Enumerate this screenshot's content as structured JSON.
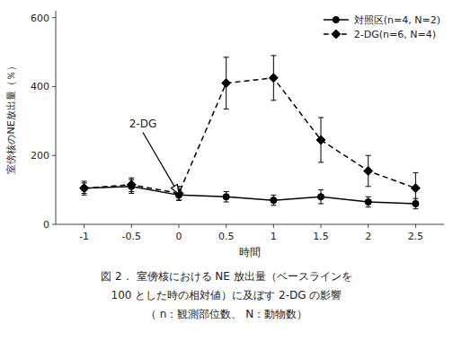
{
  "chart_data": {
    "type": "line",
    "x_label": "時間",
    "y_label": "室傍核のNE放出量（％）",
    "x": [
      -1,
      -0.5,
      0,
      0.5,
      1,
      1.5,
      2,
      2.5
    ],
    "series": [
      {
        "name": "対照区(n=4, N=2)",
        "color": "#000000",
        "marker": "circle",
        "line_style": "solid",
        "values": [
          105,
          110,
          85,
          80,
          70,
          80,
          65,
          60
        ],
        "errors": [
          15,
          20,
          15,
          15,
          15,
          20,
          15,
          15
        ]
      },
      {
        "name": "2-DG(n=6, N=4)",
        "color": "#000000",
        "marker": "diamond",
        "line_style": "dashed",
        "values": [
          105,
          115,
          90,
          410,
          425,
          245,
          155,
          105
        ],
        "errors": [
          20,
          20,
          20,
          75,
          65,
          65,
          45,
          45
        ]
      }
    ],
    "xlim": [
      -1.3,
      2.8
    ],
    "ylim": [
      0,
      620
    ],
    "xticks": [
      -1,
      -0.5,
      0,
      0.5,
      1,
      1.5,
      2,
      2.5
    ],
    "yticks": [
      0,
      200,
      400,
      600
    ],
    "grid": false,
    "legend": "upper right",
    "annotations": [
      {
        "text": "2-DG",
        "x": 0.0,
        "y": 88,
        "text_x": -0.38,
        "text_y": 275
      }
    ],
    "caption": [
      "図 2．  室傍核における NE 放出量（ベースラインを",
      "100 とした時の相対値）に及ぼす 2-DG の影響",
      "（ n：観測部位数、 N：動物数）"
    ]
  }
}
